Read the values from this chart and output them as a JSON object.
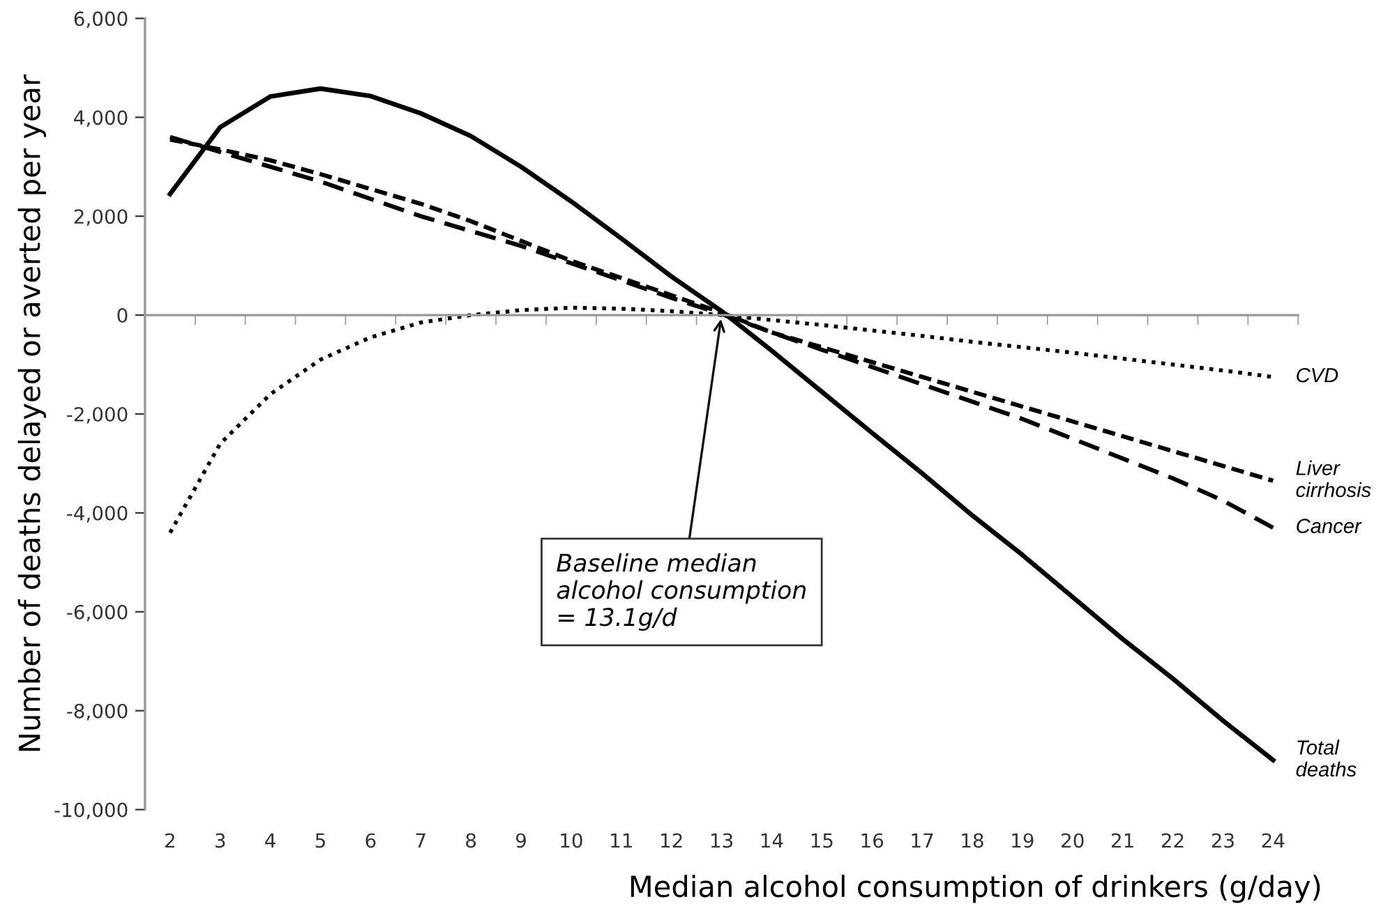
{
  "chart_data": {
    "type": "line",
    "xlabel": "Median alcohol consumption of drinkers (g/day)",
    "ylabel": "Number of deaths delayed or averted per year",
    "categories": [
      "2",
      "3",
      "4",
      "5",
      "6",
      "7",
      "8",
      "9",
      "10",
      "11",
      "12",
      "13",
      "14",
      "15",
      "16",
      "17",
      "18",
      "19",
      "20",
      "21",
      "22",
      "23",
      "24"
    ],
    "series": [
      {
        "name": "Total deaths",
        "color": "#000000",
        "line_style": "solid",
        "values": [
          2450,
          3800,
          4420,
          4580,
          4430,
          4080,
          3620,
          3000,
          2300,
          1550,
          780,
          80,
          -720,
          -1550,
          -2380,
          -3200,
          -4050,
          -4850,
          -5700,
          -6550,
          -7350,
          -8200,
          -9000
        ]
      },
      {
        "name": "CVD",
        "color": "#000000",
        "line_style": "dotted",
        "values": [
          -4400,
          -2600,
          -1600,
          -900,
          -450,
          -150,
          0,
          100,
          150,
          130,
          80,
          0,
          -100,
          -200,
          -310,
          -420,
          -540,
          -650,
          -760,
          -880,
          -1000,
          -1120,
          -1250
        ]
      },
      {
        "name": "Liver cirrhosis",
        "color": "#000000",
        "line_style": "short_dashed",
        "values": [
          3550,
          3350,
          3130,
          2850,
          2550,
          2250,
          1900,
          1500,
          1100,
          750,
          400,
          50,
          -350,
          -650,
          -950,
          -1250,
          -1550,
          -1850,
          -2150,
          -2450,
          -2750,
          -3050,
          -3350
        ]
      },
      {
        "name": "Cancer",
        "color": "#000000",
        "line_style": "dashed",
        "values": [
          3600,
          3300,
          3000,
          2700,
          2350,
          2000,
          1700,
          1400,
          1050,
          700,
          350,
          20,
          -350,
          -700,
          -1050,
          -1400,
          -1750,
          -2100,
          -2500,
          -2900,
          -3300,
          -3750,
          -4300
        ]
      }
    ],
    "ylim": [
      -10000,
      6000
    ],
    "yticks": [
      {
        "value": -10000,
        "label": "-10,000"
      },
      {
        "value": -8000,
        "label": "-8,000"
      },
      {
        "value": -6000,
        "label": "-6,000"
      },
      {
        "value": -4000,
        "label": "-4,000"
      },
      {
        "value": -2000,
        "label": "-2,000"
      },
      0,
      {
        "value": 2000,
        "label": "2,000"
      },
      {
        "value": 4000,
        "label": "4,000"
      },
      {
        "value": 6000,
        "label": "6,000"
      }
    ],
    "annotations": [
      {
        "text": "Baseline median\nalcohol consumption\n= 13.1g/d",
        "x": "13",
        "y": 0
      }
    ],
    "legend": false
  }
}
